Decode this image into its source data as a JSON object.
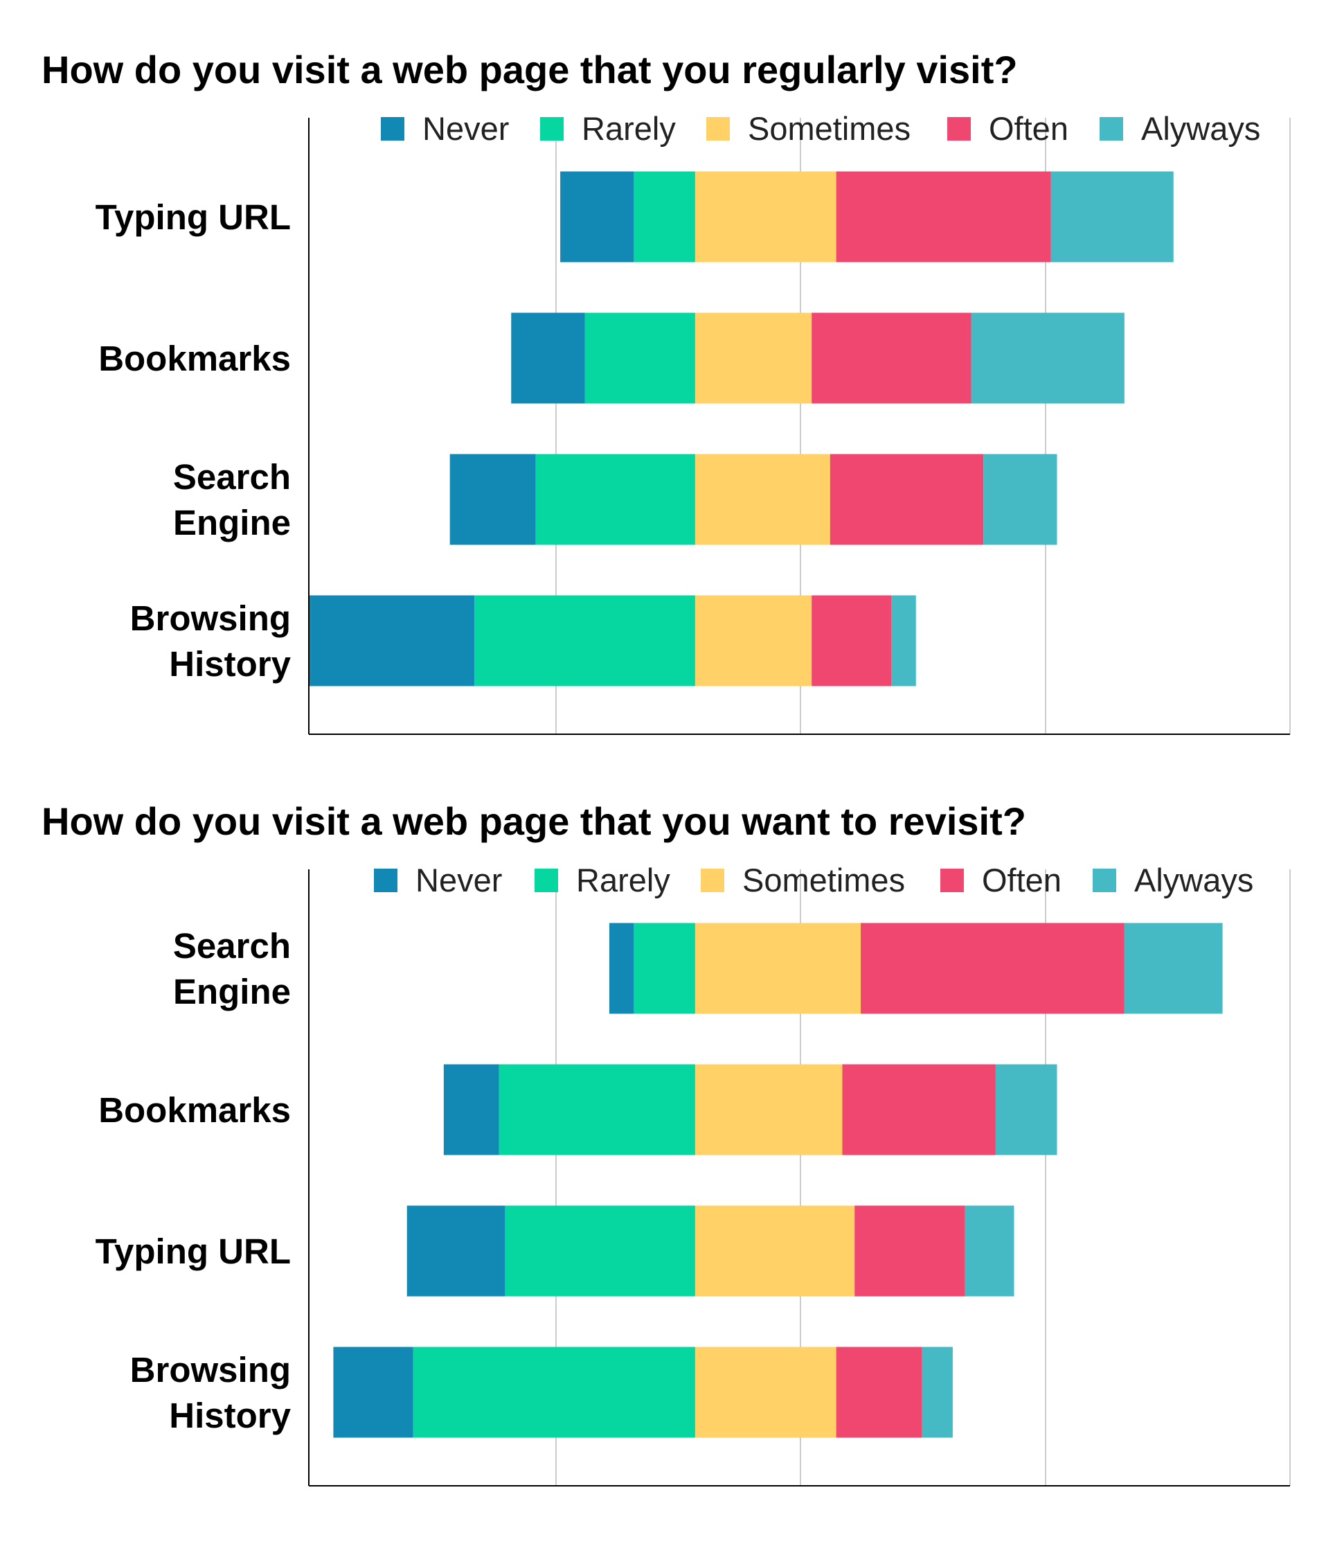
{
  "colors": {
    "Never": "#1289b4",
    "Rarely": "#06d6a0",
    "Sometimes": "#ffd166",
    "Often": "#ef476f",
    "Alyways": "#45bac4",
    "grid": "#cccccc",
    "axis": "#000000"
  },
  "chart_data": [
    {
      "type": "bar",
      "orientation": "horizontal",
      "stacked": "diverging",
      "title": "How do you visit a web page that you regularly visit?",
      "legend": [
        "Never",
        "Rarely",
        "Sometimes",
        "Often",
        "Alyways"
      ],
      "legend_position": "top",
      "grid": true,
      "categories": [
        [
          "Typing URL"
        ],
        [
          "Bookmarks"
        ],
        [
          "Search",
          "Engine"
        ],
        [
          "Browsing",
          "History"
        ]
      ],
      "series": [
        {
          "name": "Never",
          "values": [
            12,
            12,
            14,
            27
          ]
        },
        {
          "name": "Rarely",
          "values": [
            10,
            18,
            26,
            36
          ]
        },
        {
          "name": "Sometimes",
          "values": [
            23,
            19,
            22,
            19
          ]
        },
        {
          "name": "Often",
          "values": [
            35,
            26,
            25,
            13
          ]
        },
        {
          "name": "Alyways",
          "values": [
            20,
            25,
            12,
            4
          ]
        }
      ],
      "xlim": [
        -63,
        97
      ]
    },
    {
      "type": "bar",
      "orientation": "horizontal",
      "stacked": "diverging",
      "title": "How do you visit a web page that you want to revisit?",
      "legend": [
        "Never",
        "Rarely",
        "Sometimes",
        "Often",
        "Alyways"
      ],
      "legend_position": "top",
      "grid": true,
      "categories": [
        [
          "Search",
          "Engine"
        ],
        [
          "Bookmarks"
        ],
        [
          "Typing URL"
        ],
        [
          "Browsing",
          "History"
        ]
      ],
      "series": [
        {
          "name": "Never",
          "values": [
            4,
            9,
            16,
            13
          ]
        },
        {
          "name": "Rarely",
          "values": [
            10,
            32,
            31,
            46
          ]
        },
        {
          "name": "Sometimes",
          "values": [
            27,
            24,
            26,
            23
          ]
        },
        {
          "name": "Often",
          "values": [
            43,
            25,
            18,
            14
          ]
        },
        {
          "name": "Alyways",
          "values": [
            16,
            10,
            8,
            5
          ]
        }
      ],
      "xlim": [
        -63,
        97
      ]
    }
  ]
}
